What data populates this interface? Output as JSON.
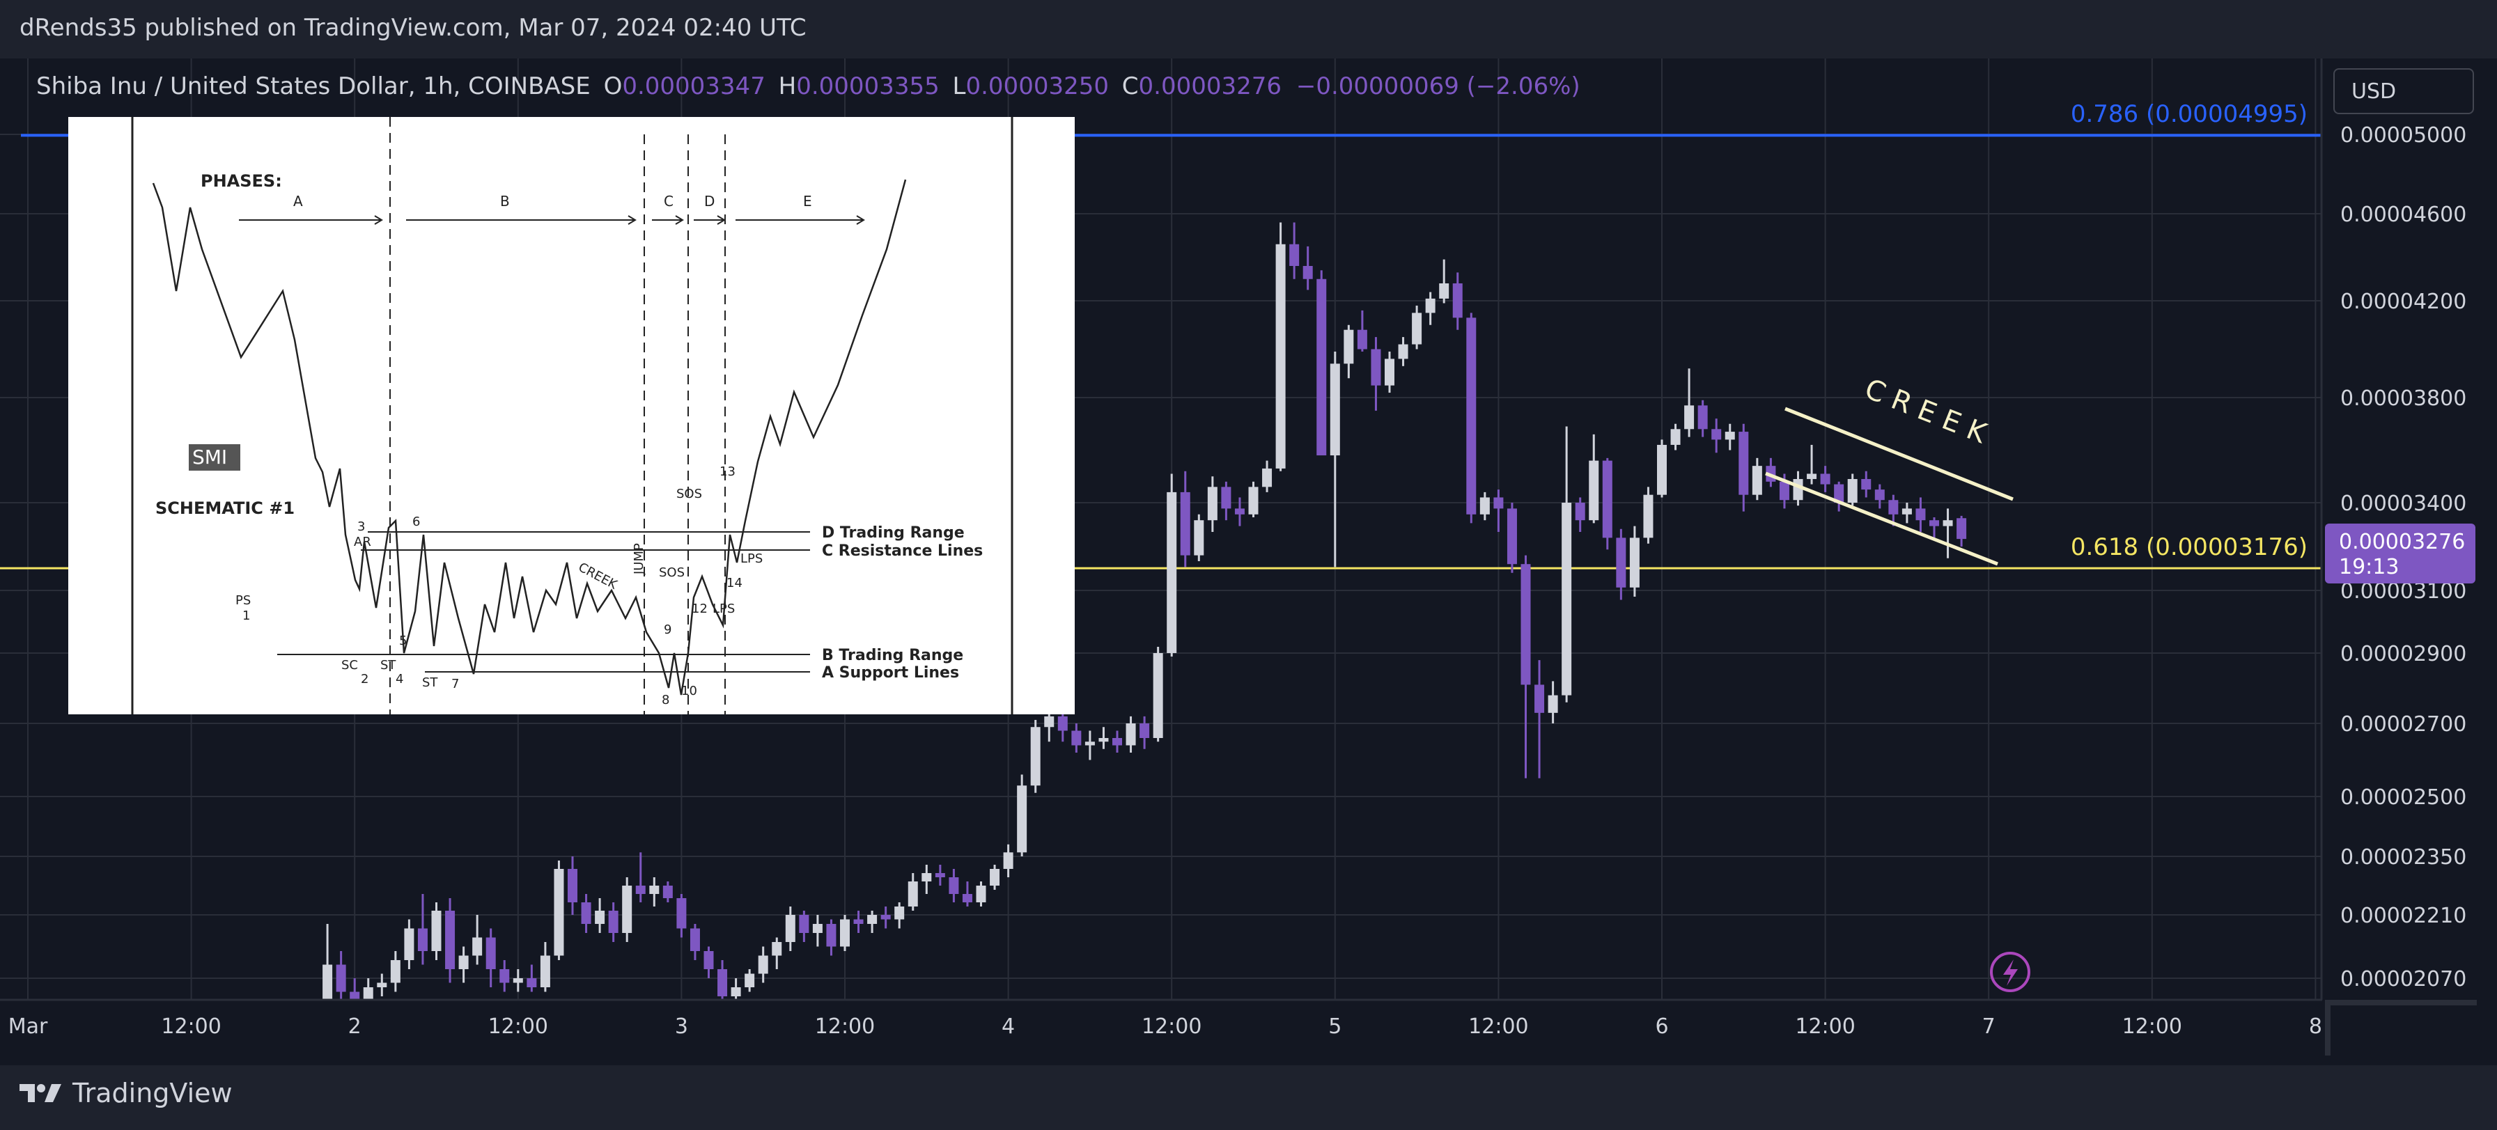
{
  "header": {
    "published_text": "dRends35 published on TradingView.com, Mar 07, 2024 02:40 UTC"
  },
  "legend": {
    "symbol": "Shiba Inu / United States Dollar, 1h, COINBASE",
    "o_label": "O",
    "o_value": "0.00003347",
    "h_label": "H",
    "h_value": "0.00003355",
    "l_label": "L",
    "l_value": "0.00003250",
    "c_label": "C",
    "c_value": "0.00003276",
    "change": "−0.00000069 (−2.06%)"
  },
  "currency_button": "USD",
  "branding": {
    "logo_text": "TradingView"
  },
  "colors": {
    "background": "#131722",
    "grid": "#2a2e39",
    "up_candle": "#d1d4dc",
    "down_candle": "#7e57c2",
    "fib_786": "#2962ff",
    "fib_618": "#f5e663",
    "price_tag": "#7e57c2",
    "creek_lines": "#f5f1c8"
  },
  "chart_data": {
    "type": "candlestick",
    "symbol": "Shiba Inu / United States Dollar",
    "interval": "1h",
    "exchange": "COINBASE",
    "price_axis_ticks": [
      "0.00005000",
      "0.00004600",
      "0.00004200",
      "0.00003800",
      "0.00003400",
      "0.00003100",
      "0.00002900",
      "0.00002700",
      "0.00002500",
      "0.00002350",
      "0.00002210",
      "0.00002070"
    ],
    "time_axis_ticks": [
      "Mar",
      "12:00",
      "2",
      "12:00",
      "3",
      "12:00",
      "4",
      "12:00",
      "5",
      "12:00",
      "6",
      "12:00",
      "7",
      "12:00",
      "8"
    ],
    "horizontal_levels": [
      {
        "label": "0.786 (0.00004995)",
        "value": 4.995e-05
      },
      {
        "label": "0.618 (0.00003176)",
        "value": 3.176e-05
      }
    ],
    "current_price": {
      "value": "0.00003276",
      "countdown": "19:13"
    },
    "annotations": [
      {
        "text": "C R E E K"
      }
    ],
    "candles": [
      [
        22,
        1.98e-05,
        2.19e-05,
        1.96e-05,
        2.1e-05
      ],
      [
        23,
        2.1e-05,
        2.13e-05,
        2.02e-05,
        2.04e-05
      ],
      [
        24,
        2.04e-05,
        2.07e-05,
        1.99e-05,
        2.01e-05
      ],
      [
        25,
        2.01e-05,
        2.07e-05,
        2e-05,
        2.05e-05
      ],
      [
        26,
        2.05e-05,
        2.08e-05,
        2.03e-05,
        2.06e-05
      ],
      [
        27,
        2.06e-05,
        2.13e-05,
        2.04e-05,
        2.11e-05
      ],
      [
        28,
        2.11e-05,
        2.2e-05,
        2.09e-05,
        2.18e-05
      ],
      [
        29,
        2.18e-05,
        2.26e-05,
        2.1e-05,
        2.13e-05
      ],
      [
        30,
        2.13e-05,
        2.24e-05,
        2.11e-05,
        2.22e-05
      ],
      [
        31,
        2.22e-05,
        2.25e-05,
        2.06e-05,
        2.09e-05
      ],
      [
        32,
        2.09e-05,
        2.14e-05,
        2.06e-05,
        2.12e-05
      ],
      [
        33,
        2.12e-05,
        2.21e-05,
        2.1e-05,
        2.16e-05
      ],
      [
        34,
        2.16e-05,
        2.18e-05,
        2.05e-05,
        2.09e-05
      ],
      [
        35,
        2.09e-05,
        2.11e-05,
        2.04e-05,
        2.06e-05
      ],
      [
        36,
        2.06e-05,
        2.09e-05,
        2.04e-05,
        2.07e-05
      ],
      [
        37,
        2.07e-05,
        2.1e-05,
        2.04e-05,
        2.05e-05
      ],
      [
        38,
        2.05e-05,
        2.15e-05,
        2.04e-05,
        2.12e-05
      ],
      [
        39,
        2.12e-05,
        2.34e-05,
        2.11e-05,
        2.32e-05
      ],
      [
        40,
        2.32e-05,
        2.35e-05,
        2.21e-05,
        2.24e-05
      ],
      [
        41,
        2.24e-05,
        2.26e-05,
        2.17e-05,
        2.19e-05
      ],
      [
        42,
        2.19e-05,
        2.25e-05,
        2.17e-05,
        2.22e-05
      ],
      [
        43,
        2.22e-05,
        2.24e-05,
        2.15e-05,
        2.17e-05
      ],
      [
        44,
        2.17e-05,
        2.3e-05,
        2.15e-05,
        2.28e-05
      ],
      [
        45,
        2.28e-05,
        2.36e-05,
        2.24e-05,
        2.26e-05
      ],
      [
        46,
        2.26e-05,
        2.3e-05,
        2.23e-05,
        2.28e-05
      ],
      [
        47,
        2.28e-05,
        2.29e-05,
        2.24e-05,
        2.25e-05
      ],
      [
        48,
        2.25e-05,
        2.26e-05,
        2.16e-05,
        2.18e-05
      ],
      [
        49,
        2.18e-05,
        2.19e-05,
        2.11e-05,
        2.13e-05
      ],
      [
        50,
        2.13e-05,
        2.14e-05,
        2.07e-05,
        2.09e-05
      ],
      [
        51,
        2.09e-05,
        2.11e-05,
        2.01e-05,
        2.03e-05
      ],
      [
        52,
        2.03e-05,
        2.07e-05,
        2.01e-05,
        2.05e-05
      ],
      [
        53,
        2.05e-05,
        2.09e-05,
        2.04e-05,
        2.08e-05
      ],
      [
        54,
        2.08e-05,
        2.14e-05,
        2.06e-05,
        2.12e-05
      ],
      [
        55,
        2.12e-05,
        2.16e-05,
        2.09e-05,
        2.15e-05
      ],
      [
        56,
        2.15e-05,
        2.23e-05,
        2.13e-05,
        2.21e-05
      ],
      [
        57,
        2.21e-05,
        2.22e-05,
        2.15e-05,
        2.17e-05
      ],
      [
        58,
        2.17e-05,
        2.21e-05,
        2.14e-05,
        2.19e-05
      ],
      [
        59,
        2.19e-05,
        2.2e-05,
        2.12e-05,
        2.14e-05
      ],
      [
        60,
        2.14e-05,
        2.21e-05,
        2.13e-05,
        2.2e-05
      ],
      [
        61,
        2.2e-05,
        2.22e-05,
        2.17e-05,
        2.19e-05
      ],
      [
        62,
        2.19e-05,
        2.22e-05,
        2.17e-05,
        2.21e-05
      ],
      [
        63,
        2.21e-05,
        2.23e-05,
        2.18e-05,
        2.2e-05
      ],
      [
        64,
        2.2e-05,
        2.24e-05,
        2.18e-05,
        2.23e-05
      ],
      [
        65,
        2.23e-05,
        2.31e-05,
        2.22e-05,
        2.29e-05
      ],
      [
        66,
        2.29e-05,
        2.33e-05,
        2.26e-05,
        2.31e-05
      ],
      [
        67,
        2.31e-05,
        2.33e-05,
        2.28e-05,
        2.3e-05
      ],
      [
        68,
        2.3e-05,
        2.32e-05,
        2.24e-05,
        2.26e-05
      ],
      [
        69,
        2.26e-05,
        2.29e-05,
        2.23e-05,
        2.24e-05
      ],
      [
        70,
        2.24e-05,
        2.29e-05,
        2.23e-05,
        2.28e-05
      ],
      [
        71,
        2.28e-05,
        2.33e-05,
        2.27e-05,
        2.32e-05
      ],
      [
        72,
        2.32e-05,
        2.38e-05,
        2.3e-05,
        2.36e-05
      ],
      [
        73,
        2.36e-05,
        2.56e-05,
        2.35e-05,
        2.53e-05
      ],
      [
        74,
        2.53e-05,
        2.71e-05,
        2.51e-05,
        2.69e-05
      ],
      [
        75,
        2.69e-05,
        2.78e-05,
        2.65e-05,
        2.72e-05
      ],
      [
        76,
        2.72e-05,
        2.74e-05,
        2.65e-05,
        2.68e-05
      ],
      [
        77,
        2.68e-05,
        2.7e-05,
        2.62e-05,
        2.64e-05
      ],
      [
        78,
        2.64e-05,
        2.68e-05,
        2.6e-05,
        2.65e-05
      ],
      [
        79,
        2.65e-05,
        2.69e-05,
        2.63e-05,
        2.66e-05
      ],
      [
        80,
        2.66e-05,
        2.68e-05,
        2.62e-05,
        2.64e-05
      ],
      [
        81,
        2.64e-05,
        2.72e-05,
        2.62e-05,
        2.7e-05
      ],
      [
        82,
        2.7e-05,
        2.72e-05,
        2.63e-05,
        2.66e-05
      ],
      [
        83,
        2.66e-05,
        2.92e-05,
        2.65e-05,
        2.9e-05
      ],
      [
        84,
        2.9e-05,
        3.51e-05,
        2.89e-05,
        3.44e-05
      ],
      [
        85,
        3.44e-05,
        3.52e-05,
        3.18e-05,
        3.22e-05
      ],
      [
        86,
        3.22e-05,
        3.36e-05,
        3.2e-05,
        3.34e-05
      ],
      [
        87,
        3.34e-05,
        3.5e-05,
        3.3e-05,
        3.46e-05
      ],
      [
        88,
        3.46e-05,
        3.48e-05,
        3.34e-05,
        3.38e-05
      ],
      [
        89,
        3.38e-05,
        3.42e-05,
        3.32e-05,
        3.36e-05
      ],
      [
        90,
        3.36e-05,
        3.48e-05,
        3.35e-05,
        3.46e-05
      ],
      [
        91,
        3.46e-05,
        3.56e-05,
        3.44e-05,
        3.53e-05
      ],
      [
        92,
        3.53e-05,
        4.56e-05,
        3.52e-05,
        4.46e-05
      ],
      [
        93,
        4.46e-05,
        4.56e-05,
        4.3e-05,
        4.36e-05
      ],
      [
        94,
        4.36e-05,
        4.45e-05,
        4.25e-05,
        4.3e-05
      ],
      [
        95,
        4.3e-05,
        4.34e-05,
        3.58e-05,
        3.58e-05
      ],
      [
        96,
        3.58e-05,
        3.99e-05,
        3.18e-05,
        3.94e-05
      ],
      [
        97,
        3.94e-05,
        4.1e-05,
        3.88e-05,
        4.08e-05
      ],
      [
        98,
        4.08e-05,
        4.16e-05,
        3.99e-05,
        4e-05
      ],
      [
        99,
        4e-05,
        4.05e-05,
        3.75e-05,
        3.85e-05
      ],
      [
        100,
        3.85e-05,
        3.99e-05,
        3.82e-05,
        3.96e-05
      ],
      [
        101,
        3.96e-05,
        4.05e-05,
        3.93e-05,
        4.02e-05
      ],
      [
        102,
        4.02e-05,
        4.18e-05,
        4e-05,
        4.15e-05
      ],
      [
        103,
        4.15e-05,
        4.24e-05,
        4.1e-05,
        4.21e-05
      ],
      [
        104,
        4.21e-05,
        4.39e-05,
        4.19e-05,
        4.28e-05
      ],
      [
        105,
        4.28e-05,
        4.33e-05,
        4.08e-05,
        4.13e-05
      ],
      [
        106,
        4.13e-05,
        4.15e-05,
        3.33e-05,
        3.36e-05
      ],
      [
        107,
        3.36e-05,
        3.44e-05,
        3.34e-05,
        3.42e-05
      ],
      [
        108,
        3.42e-05,
        3.45e-05,
        3.3e-05,
        3.38e-05
      ],
      [
        109,
        3.38e-05,
        3.4e-05,
        3.16e-05,
        3.19e-05
      ],
      [
        110,
        3.19e-05,
        3.22e-05,
        2.55e-05,
        2.81e-05
      ],
      [
        111,
        2.81e-05,
        2.88e-05,
        2.55e-05,
        2.73e-05
      ],
      [
        112,
        2.73e-05,
        2.82e-05,
        2.7e-05,
        2.78e-05
      ],
      [
        113,
        2.78e-05,
        3.69e-05,
        2.76e-05,
        3.4e-05
      ],
      [
        114,
        3.4e-05,
        3.42e-05,
        3.3e-05,
        3.34e-05
      ],
      [
        115,
        3.34e-05,
        3.66e-05,
        3.33e-05,
        3.56e-05
      ],
      [
        116,
        3.56e-05,
        3.57e-05,
        3.24e-05,
        3.28e-05
      ],
      [
        117,
        3.28e-05,
        3.31e-05,
        3.07e-05,
        3.11e-05
      ],
      [
        118,
        3.11e-05,
        3.32e-05,
        3.08e-05,
        3.28e-05
      ],
      [
        119,
        3.28e-05,
        3.46e-05,
        3.26e-05,
        3.43e-05
      ],
      [
        120,
        3.43e-05,
        3.64e-05,
        3.42e-05,
        3.62e-05
      ],
      [
        121,
        3.62e-05,
        3.7e-05,
        3.6e-05,
        3.68e-05
      ],
      [
        122,
        3.68e-05,
        3.92e-05,
        3.65e-05,
        3.77e-05
      ],
      [
        123,
        3.77e-05,
        3.79e-05,
        3.65e-05,
        3.68e-05
      ],
      [
        124,
        3.68e-05,
        3.72e-05,
        3.59e-05,
        3.64e-05
      ],
      [
        125,
        3.64e-05,
        3.7e-05,
        3.6e-05,
        3.67e-05
      ],
      [
        126,
        3.67e-05,
        3.7e-05,
        3.37e-05,
        3.43e-05
      ],
      [
        127,
        3.43e-05,
        3.57e-05,
        3.41e-05,
        3.54e-05
      ],
      [
        128,
        3.54e-05,
        3.57e-05,
        3.46e-05,
        3.48e-05
      ],
      [
        129,
        3.48e-05,
        3.51e-05,
        3.38e-05,
        3.41e-05
      ],
      [
        130,
        3.41e-05,
        3.52e-05,
        3.39e-05,
        3.49e-05
      ],
      [
        131,
        3.49e-05,
        3.62e-05,
        3.47e-05,
        3.51e-05
      ],
      [
        132,
        3.51e-05,
        3.54e-05,
        3.44e-05,
        3.47e-05
      ],
      [
        133,
        3.47e-05,
        3.48e-05,
        3.37e-05,
        3.4e-05
      ],
      [
        134,
        3.4e-05,
        3.51e-05,
        3.39e-05,
        3.49e-05
      ],
      [
        135,
        3.49e-05,
        3.52e-05,
        3.42e-05,
        3.45e-05
      ],
      [
        136,
        3.45e-05,
        3.47e-05,
        3.38e-05,
        3.41e-05
      ],
      [
        137,
        3.41e-05,
        3.43e-05,
        3.32e-05,
        3.36e-05
      ],
      [
        138,
        3.36e-05,
        3.4e-05,
        3.33e-05,
        3.38e-05
      ],
      [
        139,
        3.38e-05,
        3.42e-05,
        3.3e-05,
        3.34e-05
      ],
      [
        140,
        3.34e-05,
        3.35e-05,
        3.28e-05,
        3.32e-05
      ],
      [
        141,
        3.32e-05,
        3.38e-05,
        3.21e-05,
        3.34e-05
      ],
      [
        142,
        3.347e-05,
        3.355e-05,
        3.25e-05,
        3.276e-05
      ]
    ]
  }
}
